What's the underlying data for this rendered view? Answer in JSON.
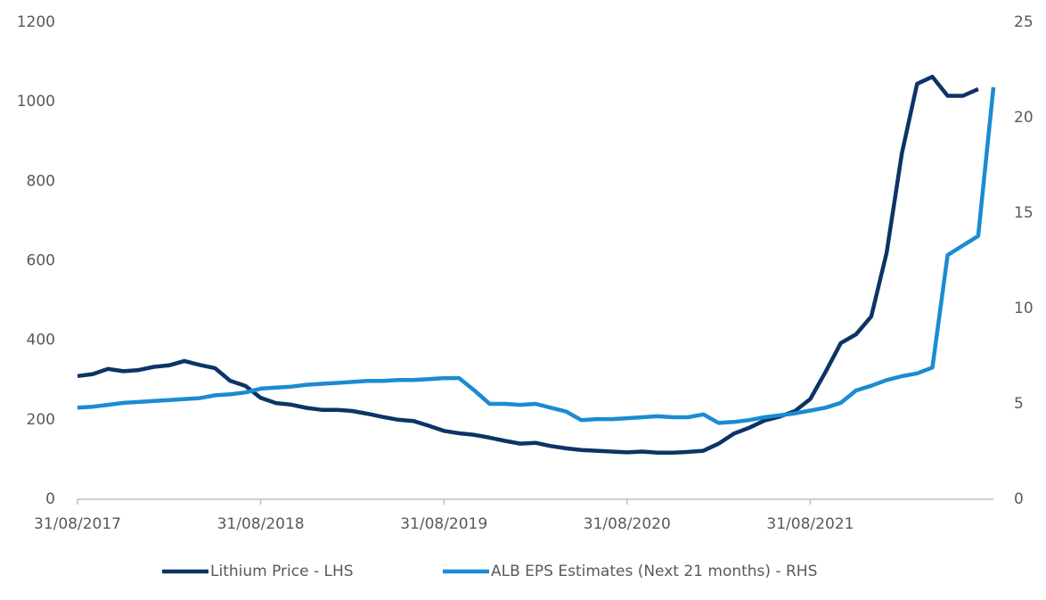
{
  "chart_data": {
    "type": "line",
    "categories": [
      "31/08/2017",
      null,
      null,
      null,
      null,
      null,
      null,
      null,
      null,
      null,
      null,
      null,
      "31/08/2018",
      null,
      null,
      null,
      null,
      null,
      null,
      null,
      null,
      null,
      null,
      null,
      "31/08/2019",
      null,
      null,
      null,
      null,
      null,
      null,
      null,
      null,
      null,
      null,
      null,
      "31/08/2020",
      null,
      null,
      null,
      null,
      null,
      null,
      null,
      null,
      null,
      null,
      null,
      "31/08/2021",
      null,
      null,
      null,
      null,
      null,
      null,
      null,
      null,
      null,
      null,
      null,
      null
    ],
    "series": [
      {
        "name": "Lithium Price - LHS",
        "color": "#0c3466",
        "axis": "y",
        "values": [
          310,
          315,
          328,
          322,
          325,
          333,
          337,
          348,
          338,
          330,
          298,
          285,
          255,
          242,
          238,
          230,
          225,
          225,
          222,
          215,
          207,
          200,
          197,
          185,
          172,
          166,
          162,
          155,
          147,
          140,
          142,
          134,
          128,
          124,
          122,
          120,
          118,
          120,
          117,
          117,
          119,
          122,
          140,
          165,
          180,
          198,
          208,
          222,
          252,
          320,
          393,
          415,
          460,
          620,
          870,
          1045,
          1063,
          1015,
          1015,
          1032,
          null
        ]
      },
      {
        "name": "ALB EPS Estimates (Next 21 months) - RHS",
        "color": "#1b8bd2",
        "axis": "y2",
        "values": [
          4.8,
          4.85,
          4.95,
          5.05,
          5.1,
          5.15,
          5.2,
          5.25,
          5.3,
          5.45,
          5.5,
          5.6,
          5.8,
          5.85,
          5.9,
          6.0,
          6.05,
          6.1,
          6.15,
          6.2,
          6.2,
          6.25,
          6.25,
          6.3,
          6.35,
          6.35,
          5.7,
          5.0,
          5.0,
          4.95,
          5.0,
          4.8,
          4.6,
          4.15,
          4.2,
          4.2,
          4.25,
          4.3,
          4.35,
          4.3,
          4.3,
          4.45,
          4.0,
          4.05,
          4.15,
          4.3,
          4.4,
          4.5,
          4.65,
          4.8,
          5.05,
          5.7,
          5.95,
          6.25,
          6.45,
          6.6,
          6.9,
          12.8,
          13.3,
          13.8,
          21.6
        ]
      }
    ],
    "ylim": [
      0,
      1200
    ],
    "yticks": [
      0,
      200,
      400,
      600,
      800,
      1000,
      1200
    ],
    "y2lim": [
      0,
      25
    ],
    "y2ticks": [
      0,
      5,
      10,
      15,
      20,
      25
    ],
    "legend": "bottom"
  }
}
